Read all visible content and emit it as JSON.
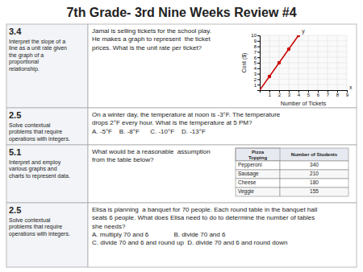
{
  "chart_data": {
    "type": "line",
    "title": "7th Grade- 3rd Nine Weeks Review #4",
    "x_label": "Number of Tickets",
    "y_label": "Cost ($)",
    "series": [
      {
        "type": "line",
        "color": "#cc0000",
        "x": [
          0,
          1,
          2,
          3,
          4
        ],
        "values": [
          0,
          2.5,
          5,
          7.5,
          10
        ]
      },
      {
        "type": "scatter",
        "color": "#cc0000",
        "marker": "circle",
        "x": [
          1,
          2,
          3,
          4
        ],
        "values": [
          2.5,
          5,
          7.5,
          10
        ]
      }
    ],
    "xlim": [
      0,
      9
    ],
    "ylim": [
      0,
      10
    ],
    "xticks": [
      1,
      2,
      3,
      4,
      5,
      6,
      7,
      8,
      9
    ],
    "yticks": [
      1,
      2,
      3,
      4,
      5,
      6,
      7,
      8,
      9,
      10
    ],
    "grid": true,
    "annotations": [
      "y",
      "x",
      "3.4",
      "Interpret the slope of a\nline as a unit rate given\nthe graph of a\nproportional\nrelationship.",
      "Jamal is selling tickets for the school play.\nHe makes a graph to represent  the ticket\nprices. What is the unit rate per ticket?",
      "2.5",
      "Solve contextual\nproblems that require\noperations with integers.",
      "On a winter day, the temperature at noon is -3°F. The temperature\ndrops 2°F every hour. What is the temperature at 5 PM?\nA. -5°F    B. -8°F      C. -10°F    D. -13°F",
      "5.1",
      "Interpret and employ\nvarious graphs and\ncharts to represent data.",
      "What would be a reasonable  assumption\nfrom the table below?",
      "Pizza\nTopping",
      "Number of Students",
      "Pepperoni",
      "340",
      "Sausage",
      "210",
      "Cheese",
      "180",
      "Veggie",
      "155",
      "2.5",
      "Solve contextual\nproblems that require\noperations with integers.",
      "Elisa is planning  a banquet for 70 people. Each round table in the banquet hall\nseats 6 people. What does Elisa need to do to determine the number of tables\nshe needs?\nA. multiply 70 and 6              B. divide 70 and 6\nC. divide 70 and 6 and round up  D. divide 70 and 6 and round down"
    ]
  }
}
